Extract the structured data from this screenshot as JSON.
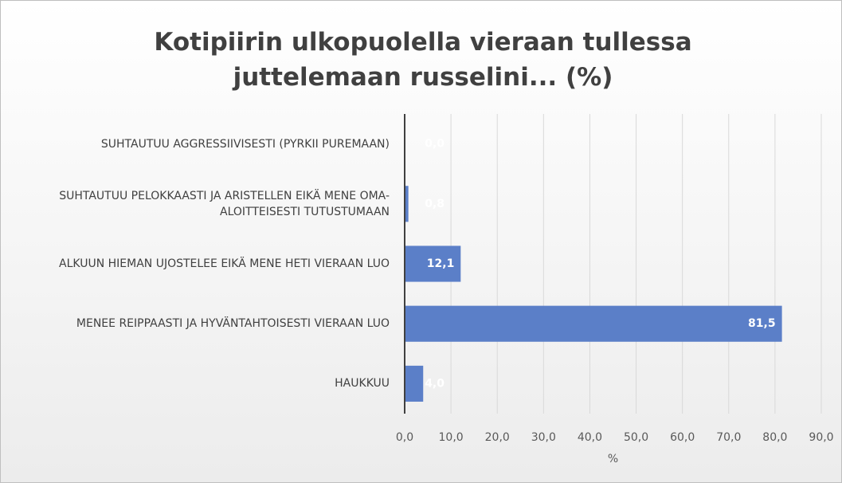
{
  "chart_data": {
    "type": "bar",
    "orientation": "horizontal",
    "title": "Kotipiirin ulkopuolella vieraan tullessa juttelemaan russelini... (%)",
    "categories": [
      "SUHTAUTUU AGGRESSIIVISESTI (PYRKII PUREMAAN)",
      "SUHTAUTUU PELOKKAASTI JA ARISTELLEN EIKÄ MENE OMA-ALOITTEISESTI TUTUSTUMAAN",
      "ALKUUN HIEMAN UJOSTELEE EIKÄ MENE HETI VIERAAN LUO",
      "MENEE REIPPAASTI JA HYVÄNTAHTOISESTI VIERAAN LUO",
      "HAUKKUU"
    ],
    "values": [
      0.0,
      0.8,
      12.1,
      81.5,
      4.0
    ],
    "value_labels": [
      "0,0",
      "0,8",
      "12,1",
      "81,5",
      "4,0"
    ],
    "color": "#5b7fc8",
    "xlabel": "%",
    "xlim": [
      0,
      90
    ],
    "xticks": [
      {
        "value": 0,
        "label": "0,0"
      },
      {
        "value": 10,
        "label": "10,0"
      },
      {
        "value": 20,
        "label": "20,0"
      },
      {
        "value": 30,
        "label": "30,0"
      },
      {
        "value": 40,
        "label": "40,0"
      },
      {
        "value": 50,
        "label": "50,0"
      },
      {
        "value": 60,
        "label": "60,0"
      },
      {
        "value": 70,
        "label": "70,0"
      },
      {
        "value": 80,
        "label": "80,0"
      },
      {
        "value": 90,
        "label": "90,0"
      }
    ],
    "grid": true
  }
}
